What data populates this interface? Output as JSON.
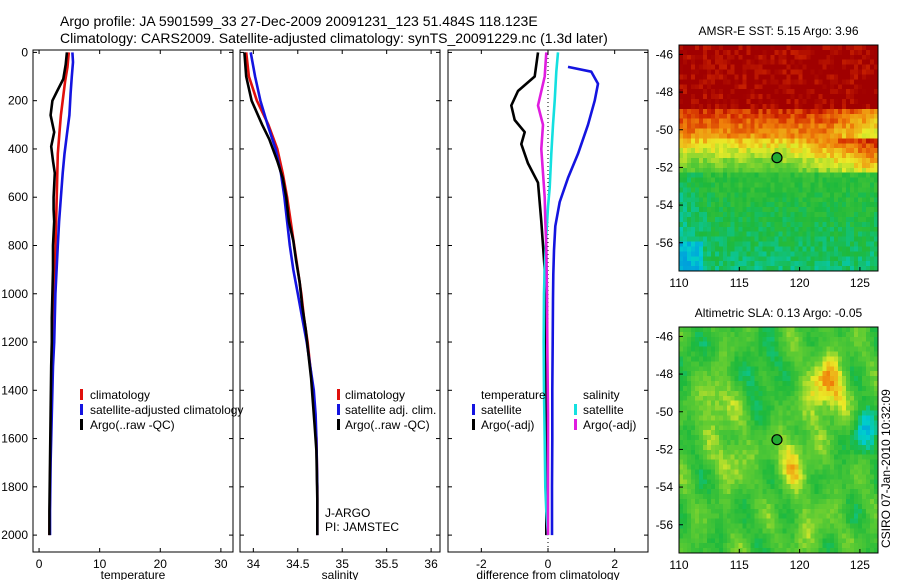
{
  "figure": {
    "title_line1": "Argo profile: JA 5901599_33 27-Dec-2009 20091231_123 51.484S 118.123E",
    "title_line2": "Climatology: CARS2009. Satellite-adjusted climatology: synTS_20091229.nc (1.3d later)",
    "credit": "CSIRO 07-Jan-2010 10:32:09",
    "colors": {
      "red": "#e0100c",
      "blue": "#1414e0",
      "black": "#000000",
      "cyan": "#14e0e0",
      "magenta": "#e01ce0"
    }
  },
  "chart_data": [
    {
      "type": "line",
      "id": "temperature",
      "xlabel": "temperature",
      "ylabel": "",
      "xlim": [
        -1,
        32
      ],
      "ylim": [
        2070,
        -10
      ],
      "xticks": [
        0,
        10,
        20,
        30
      ],
      "yticks": [
        0,
        200,
        400,
        600,
        800,
        1000,
        1200,
        1400,
        1600,
        1800,
        2000
      ],
      "series": [
        {
          "name": "climatology",
          "color": "#e0100c",
          "x": [
            4.9,
            4.7,
            4.3,
            3.9,
            3.6,
            3.4,
            3.1,
            3.0,
            2.9,
            2.8,
            2.7,
            2.6,
            2.5,
            2.4,
            2.3,
            2.2,
            2.1,
            2.0,
            1.9,
            1.8,
            1.7
          ],
          "y": [
            0,
            60,
            120,
            200,
            260,
            320,
            420,
            520,
            620,
            720,
            820,
            920,
            1020,
            1120,
            1220,
            1320,
            1420,
            1520,
            1620,
            1800,
            2000
          ]
        },
        {
          "name": "satellite-adjusted climatology",
          "color": "#1414e0",
          "x": [
            5.5,
            5.6,
            5.4,
            5.2,
            5.0,
            4.6,
            4.2,
            3.9,
            3.6,
            3.3,
            3.1,
            2.9,
            2.7,
            2.6,
            2.5,
            2.3,
            2.2,
            2.1,
            2.0,
            1.9,
            1.8,
            1.8
          ],
          "y": [
            0,
            40,
            100,
            170,
            260,
            340,
            420,
            500,
            600,
            700,
            800,
            900,
            1000,
            1100,
            1200,
            1300,
            1400,
            1500,
            1600,
            1700,
            1900,
            2000
          ]
        },
        {
          "name": "Argo(..raw -QC)",
          "color": "#000000",
          "x": [
            4.6,
            4.4,
            4.0,
            3.0,
            2.2,
            1.9,
            2.5,
            2.0,
            2.3,
            2.6,
            2.4,
            2.4,
            2.5,
            2.3,
            2.3,
            2.2,
            2.1,
            2.1,
            2.0,
            1.9,
            1.8,
            1.7,
            1.7
          ],
          "y": [
            0,
            50,
            110,
            160,
            200,
            260,
            330,
            390,
            450,
            500,
            600,
            650,
            700,
            800,
            900,
            1000,
            1100,
            1200,
            1300,
            1500,
            1700,
            1900,
            2000
          ]
        }
      ],
      "legend": [
        "climatology",
        "satellite-adjusted climatology",
        "Argo(..raw -QC)"
      ]
    },
    {
      "type": "line",
      "id": "salinity",
      "xlabel": "salinity",
      "ylabel": "",
      "xlim": [
        33.85,
        36.1
      ],
      "ylim": [
        2070,
        -10
      ],
      "xticks": [
        34,
        34.5,
        35,
        35.5,
        36
      ],
      "yticks": [
        0,
        200,
        400,
        600,
        800,
        1000,
        1200,
        1400,
        1600,
        1800,
        2000
      ],
      "series": [
        {
          "name": "climatology",
          "color": "#e0100c",
          "x": [
            33.92,
            33.95,
            34.04,
            34.17,
            34.27,
            34.33,
            34.38,
            34.42,
            34.46,
            34.5,
            34.54,
            34.57,
            34.61,
            34.64,
            34.67,
            34.69,
            34.71,
            34.72,
            34.72
          ],
          "y": [
            0,
            100,
            200,
            300,
            400,
            500,
            600,
            700,
            800,
            900,
            1000,
            1100,
            1200,
            1300,
            1400,
            1500,
            1600,
            1800,
            2000
          ]
        },
        {
          "name": "satellite adj. clim.",
          "color": "#1414e0",
          "x": [
            33.97,
            34.02,
            34.08,
            34.16,
            34.25,
            34.31,
            34.35,
            34.38,
            34.41,
            34.45,
            34.5,
            34.55,
            34.6,
            34.64,
            34.68,
            34.7,
            34.71,
            34.72,
            34.72
          ],
          "y": [
            0,
            100,
            200,
            300,
            400,
            500,
            600,
            700,
            800,
            900,
            1000,
            1100,
            1200,
            1300,
            1400,
            1500,
            1600,
            1800,
            2000
          ]
        },
        {
          "name": "Argo(..raw -QC)",
          "color": "#000000",
          "x": [
            33.9,
            33.92,
            33.98,
            34.1,
            34.18,
            34.27,
            34.33,
            34.37,
            34.4,
            34.45,
            34.48,
            34.52,
            34.55,
            34.59,
            34.62,
            34.65,
            34.67,
            34.69,
            34.71,
            34.72,
            34.72
          ],
          "y": [
            0,
            100,
            200,
            300,
            360,
            450,
            520,
            600,
            700,
            780,
            860,
            950,
            1050,
            1150,
            1250,
            1350,
            1450,
            1550,
            1650,
            1850,
            2000
          ]
        }
      ],
      "legend": [
        "climatology",
        "satellite adj. clim.",
        "Argo(..raw -QC)"
      ],
      "annotation": [
        "J-ARGO",
        "PI: JAMSTEC"
      ]
    },
    {
      "type": "line",
      "id": "difference",
      "xlabel": "difference from climatology",
      "ylabel": "",
      "xlim": [
        -3,
        3
      ],
      "ylim": [
        2070,
        -10
      ],
      "xticks": [
        -2,
        0,
        2
      ],
      "yticks": [
        0,
        200,
        400,
        600,
        800,
        1000,
        1200,
        1400,
        1600,
        1800,
        2000
      ],
      "series": [
        {
          "name": "temperature satellite",
          "color": "#1414e0",
          "x": [
            0.6,
            1.3,
            1.5,
            1.4,
            1.2,
            0.9,
            0.6,
            0.35,
            0.22,
            0.18,
            0.16,
            0.15,
            0.14,
            0.13,
            0.13,
            0.12,
            0.12,
            0.12
          ],
          "y": [
            60,
            80,
            130,
            200,
            300,
            420,
            520,
            620,
            720,
            820,
            920,
            1020,
            1200,
            1400,
            1600,
            1800,
            1950,
            2000
          ]
        },
        {
          "name": "temperature Argo(-adj)",
          "color": "#000000",
          "x": [
            -0.3,
            -0.4,
            -0.9,
            -1.1,
            -1.0,
            -0.7,
            -0.8,
            -0.6,
            -0.3,
            -0.2,
            -0.15,
            -0.1,
            -0.1,
            -0.1,
            -0.05,
            -0.05,
            -0.05
          ],
          "y": [
            0,
            100,
            160,
            220,
            280,
            330,
            380,
            460,
            540,
            700,
            800,
            900,
            1000,
            1200,
            1500,
            1800,
            2000
          ]
        },
        {
          "name": "salinity satellite",
          "color": "#14e0e0",
          "x": [
            0.3,
            0.25,
            0.2,
            0.15,
            0.1,
            0.05,
            0.0,
            -0.05,
            -0.1,
            -0.12,
            -0.13,
            -0.12,
            -0.1,
            -0.08,
            -0.05,
            0.0
          ],
          "y": [
            0,
            80,
            200,
            300,
            420,
            560,
            640,
            760,
            900,
            1000,
            1200,
            1400,
            1600,
            1800,
            1900,
            2000
          ]
        },
        {
          "name": "salinity Argo(-adj)",
          "color": "#e01ce0",
          "x": [
            -0.05,
            -0.1,
            -0.3,
            -0.15,
            -0.2,
            -0.15,
            -0.1,
            -0.08,
            -0.05,
            -0.03,
            -0.02,
            0.0,
            0.0
          ],
          "y": [
            0,
            100,
            220,
            300,
            400,
            500,
            600,
            700,
            800,
            1000,
            1200,
            1500,
            2000
          ]
        }
      ],
      "legend_groups": [
        {
          "title": "temperature",
          "items": [
            {
              "label": "satellite",
              "color": "#1414e0"
            },
            {
              "label": "Argo(-adj)",
              "color": "#000000"
            }
          ]
        },
        {
          "title": "salinity",
          "items": [
            {
              "label": "satellite",
              "color": "#14e0e0"
            },
            {
              "label": "Argo(-adj)",
              "color": "#e01ce0"
            }
          ]
        }
      ]
    },
    {
      "type": "heatmap",
      "id": "sst_map",
      "title": "AMSR-E SST: 5.15 Argo: 3.96",
      "xlim": [
        110,
        126.5
      ],
      "ylim": [
        -57.5,
        -45.5
      ],
      "xticks": [
        110,
        115,
        120,
        125
      ],
      "yticks": [
        -46,
        -48,
        -50,
        -52,
        -54,
        -56
      ],
      "marker": {
        "lon": 118.123,
        "lat": -51.484
      }
    },
    {
      "type": "heatmap",
      "id": "sla_map",
      "title": "Altimetric SLA: 0.13 Argo: -0.05",
      "xlim": [
        110,
        126.5
      ],
      "ylim": [
        -57.5,
        -45.5
      ],
      "xticks": [
        110,
        115,
        120,
        125
      ],
      "yticks": [
        -46,
        -48,
        -50,
        -52,
        -54,
        -56
      ],
      "marker": {
        "lon": 118.123,
        "lat": -51.484
      }
    }
  ]
}
